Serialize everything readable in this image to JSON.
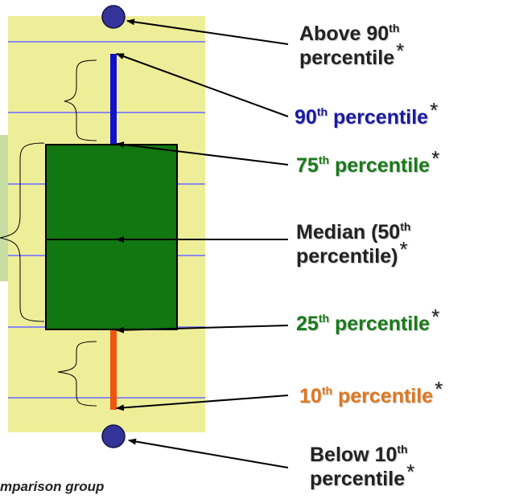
{
  "colors": {
    "panel": "#eeee99",
    "panel_line": "#8888ee",
    "box_fill": "#117711",
    "whisker_top": "#1111cc",
    "whisker_bottom": "#ee5511",
    "dot": "#333399",
    "side_block": "#c7dda2",
    "text_dark": "#222222",
    "text_blue": "#1a1aa0",
    "text_green": "#1a7a1a",
    "text_orange": "#e07820"
  },
  "labels": {
    "above_90": {
      "pre": "Above 90",
      "sup": "th",
      "line2": "percentile",
      "star": "*"
    },
    "p90": {
      "pre": "90",
      "sup": "th",
      "post": " percentile",
      "star": "*"
    },
    "p75": {
      "pre": "75",
      "sup": "th",
      "post": " percentile",
      "star": "*"
    },
    "median": {
      "pre": "Median (50",
      "sup": "th",
      "line2": "percentile)",
      "star": "*"
    },
    "p25": {
      "pre": "25",
      "sup": "th",
      "post": " percentile",
      "star": "*"
    },
    "p10": {
      "pre": "10",
      "sup": "th",
      "post": " percentile",
      "star": "*"
    },
    "below_10": {
      "pre": "Below 10",
      "sup": "th",
      "line2": "percentile",
      "star": "*"
    }
  },
  "caption": "mparison group"
}
